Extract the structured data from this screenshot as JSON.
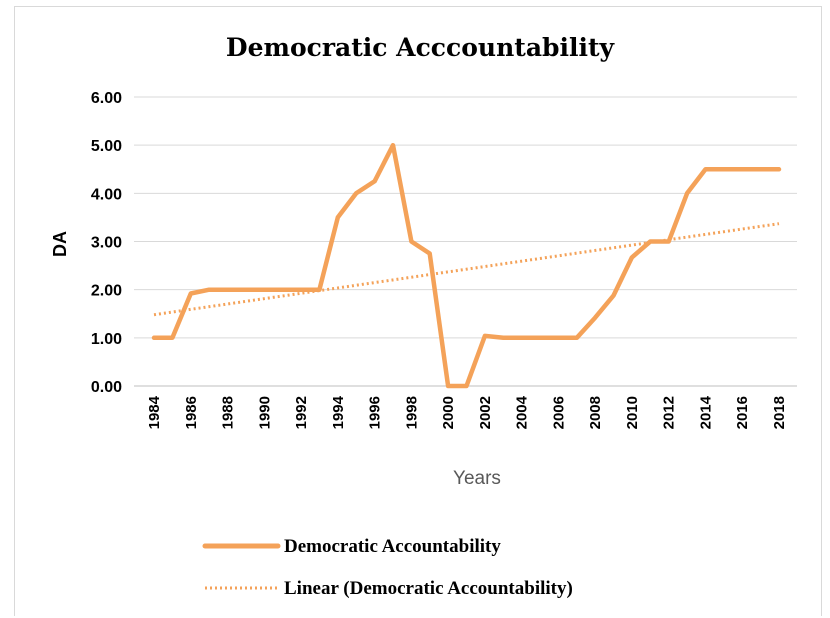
{
  "chart_data": {
    "type": "line",
    "title": "Democratic Acccountability",
    "xlabel": "Years",
    "ylabel": "DA",
    "ylim": [
      0,
      6
    ],
    "y_ticks": [
      "0.00",
      "1.00",
      "2.00",
      "3.00",
      "4.00",
      "5.00",
      "6.00"
    ],
    "x_tick_labels": [
      "1984",
      "1986",
      "1988",
      "1990",
      "1992",
      "1994",
      "1996",
      "1998",
      "2000",
      "2002",
      "2004",
      "2006",
      "2008",
      "2010",
      "2012",
      "2014",
      "2016",
      "2018"
    ],
    "x": [
      1984,
      1985,
      1986,
      1987,
      1988,
      1989,
      1990,
      1991,
      1992,
      1993,
      1994,
      1995,
      1996,
      1997,
      1998,
      1999,
      2000,
      2001,
      2002,
      2003,
      2004,
      2005,
      2006,
      2007,
      2008,
      2009,
      2010,
      2011,
      2012,
      2013,
      2014,
      2015,
      2016,
      2017,
      2018
    ],
    "series": [
      {
        "name": "Democratic Accountability",
        "style": "solid",
        "color": "#f4a259",
        "values": [
          1.0,
          1.0,
          1.92,
          2.0,
          2.0,
          2.0,
          2.0,
          2.0,
          2.0,
          2.0,
          3.5,
          4.0,
          4.25,
          5.0,
          3.0,
          2.75,
          0.0,
          0.0,
          1.04,
          1.0,
          1.0,
          1.0,
          1.0,
          1.0,
          1.42,
          1.88,
          2.67,
          3.0,
          3.0,
          4.0,
          4.5,
          4.5,
          4.5,
          4.5,
          4.5
        ]
      },
      {
        "name": "Linear (Democratic Accountability)",
        "style": "dotted",
        "color": "#f4a259",
        "trend_start": 1.48,
        "trend_end": 3.37
      }
    ],
    "grid": true,
    "legend_position": "bottom"
  }
}
